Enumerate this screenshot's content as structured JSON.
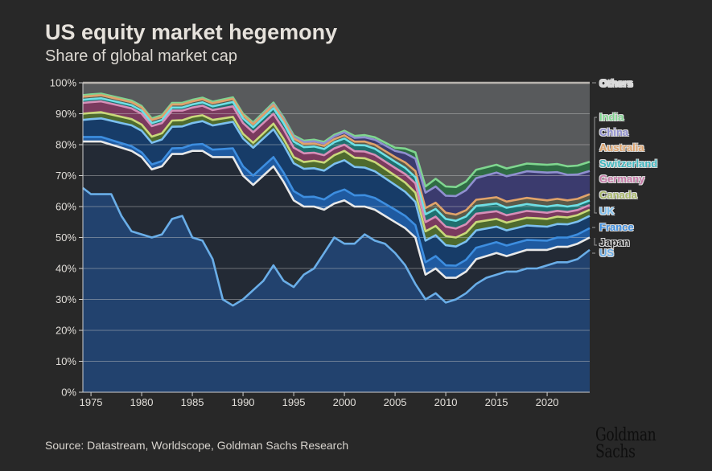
{
  "title": "US equity market hegemony",
  "subtitle": "Share of global market cap",
  "source": "Source: Datastream, Worldscope, Goldman Sachs Research",
  "logo": "Goldman Sachs",
  "chart_data": {
    "type": "area",
    "stacked": true,
    "title": "US equity market hegemony",
    "subtitle": "Share of global market cap",
    "xlabel": "",
    "ylabel": "",
    "ylim": [
      0,
      100
    ],
    "xlim": [
      1974,
      2024
    ],
    "grid": true,
    "legend_placement": "right",
    "y_ticks": [
      "0%",
      "10%",
      "20%",
      "30%",
      "40%",
      "50%",
      "60%",
      "70%",
      "80%",
      "90%",
      "100%"
    ],
    "x_ticks": [
      "1975",
      "1980",
      "1985",
      "1990",
      "1995",
      "2000",
      "2005",
      "2010",
      "2015",
      "2020"
    ],
    "years": [
      1974,
      1975,
      1976,
      1977,
      1978,
      1979,
      1980,
      1981,
      1982,
      1983,
      1984,
      1985,
      1986,
      1987,
      1988,
      1989,
      1990,
      1991,
      1992,
      1993,
      1994,
      1995,
      1996,
      1997,
      1998,
      1999,
      2000,
      2001,
      2002,
      2003,
      2004,
      2005,
      2006,
      2007,
      2008,
      2009,
      2010,
      2011,
      2012,
      2013,
      2014,
      2015,
      2016,
      2017,
      2018,
      2019,
      2020,
      2021,
      2022,
      2023,
      2024
    ],
    "anchor_years": [
      1974,
      1980,
      1985,
      1990,
      1995,
      2000,
      2005,
      2007,
      2008,
      2010,
      2015,
      2020,
      2024
    ],
    "series": [
      {
        "name": "US",
        "fill": "#22426e",
        "line": "#6aaee8",
        "values": [
          66,
          64,
          64,
          64,
          57,
          52,
          51,
          50,
          51,
          56,
          57,
          50,
          49,
          43,
          30,
          28,
          30,
          33,
          36,
          41,
          36,
          34,
          38,
          40,
          45,
          50,
          48,
          48,
          51,
          49,
          48,
          45,
          41,
          35,
          30,
          32,
          29,
          30,
          32,
          35,
          37,
          38,
          39,
          39,
          40,
          40,
          41,
          42,
          42,
          43,
          46
        ]
      },
      {
        "name": "Japan",
        "fill": "#232a35",
        "line": "#e8e8e8",
        "values": [
          15,
          17,
          17,
          16,
          22,
          26,
          25,
          22,
          22,
          21,
          20,
          28,
          29,
          33,
          46,
          48,
          40,
          34,
          34,
          32,
          32,
          28,
          22,
          20,
          14,
          11,
          14,
          12,
          9,
          10,
          9,
          10,
          12,
          15,
          8,
          8,
          8,
          7,
          7,
          8,
          7,
          7,
          5,
          6,
          6,
          6,
          5,
          5,
          5,
          5,
          4
        ]
      },
      {
        "name": "France",
        "fill": "#1f5aa0",
        "line": "#3d8ee0",
        "anchor_values": [
          1.5,
          1.5,
          2,
          3,
          3,
          3.5,
          4,
          4,
          4,
          4,
          3.5,
          3,
          3
        ]
      },
      {
        "name": "UK",
        "fill": "#173c68",
        "line": "#7cc0f0",
        "anchor_values": [
          5.5,
          7,
          7,
          9,
          9,
          9.5,
          8,
          7.5,
          7,
          6.5,
          5,
          4.5,
          4
        ]
      },
      {
        "name": "Canada",
        "fill": "#4e6a2e",
        "line": "#c9d97a",
        "anchor_values": [
          2,
          2,
          2,
          1.5,
          2,
          3,
          3,
          3,
          3,
          3,
          2.5,
          2.5,
          2
        ]
      },
      {
        "name": "Germany",
        "fill": "#7a3a5e",
        "line": "#d78fb8",
        "anchor_values": [
          3.5,
          3.5,
          3,
          3.5,
          3,
          2,
          2.5,
          3,
          3,
          3,
          2.5,
          2,
          1.5
        ]
      },
      {
        "name": "Switzerland",
        "fill": "#1f6f6e",
        "line": "#6ee0e6",
        "anchor_values": [
          1,
          1,
          1,
          1.5,
          2,
          2,
          2,
          2,
          2.5,
          2.5,
          2.5,
          2,
          1.5
        ]
      },
      {
        "name": "Australia",
        "fill": "#5a5a4a",
        "line": "#e0a36a",
        "anchor_values": [
          1,
          1,
          1,
          1,
          1,
          1,
          1.5,
          2,
          2,
          2,
          2,
          2,
          2
        ]
      },
      {
        "name": "China",
        "fill": "#3b3b6e",
        "line": "#9090d0",
        "anchor_values": [
          0,
          0,
          0,
          0,
          0.5,
          1,
          2,
          4,
          5,
          5.5,
          8,
          9,
          7.5
        ]
      },
      {
        "name": "India",
        "fill": "#2f6b44",
        "line": "#7fd68f",
        "anchor_values": [
          0.5,
          0.5,
          0.5,
          0.5,
          0.5,
          0.5,
          1,
          2,
          2,
          3,
          2.5,
          2.5,
          3
        ]
      },
      {
        "name": "Others",
        "fill": "#585a5c",
        "line": "#b8b4ae",
        "remainder": true
      }
    ],
    "legend": [
      {
        "label": "Others",
        "color": "#d8d8d8"
      },
      {
        "label": "India",
        "color": "#7fd68f"
      },
      {
        "label": "China",
        "color": "#8f8fd0"
      },
      {
        "label": "Australia",
        "color": "#e0a36a"
      },
      {
        "label": "Switzerland",
        "color": "#3fb8c0"
      },
      {
        "label": "Germany",
        "color": "#c87aa8"
      },
      {
        "label": "Canada",
        "color": "#a8b868"
      },
      {
        "label": "UK",
        "color": "#7cc0f0"
      },
      {
        "label": "France",
        "color": "#3d8ee0"
      },
      {
        "label": "Japan",
        "color": "#222222"
      },
      {
        "label": "US",
        "color": "#6aaee8"
      }
    ]
  }
}
